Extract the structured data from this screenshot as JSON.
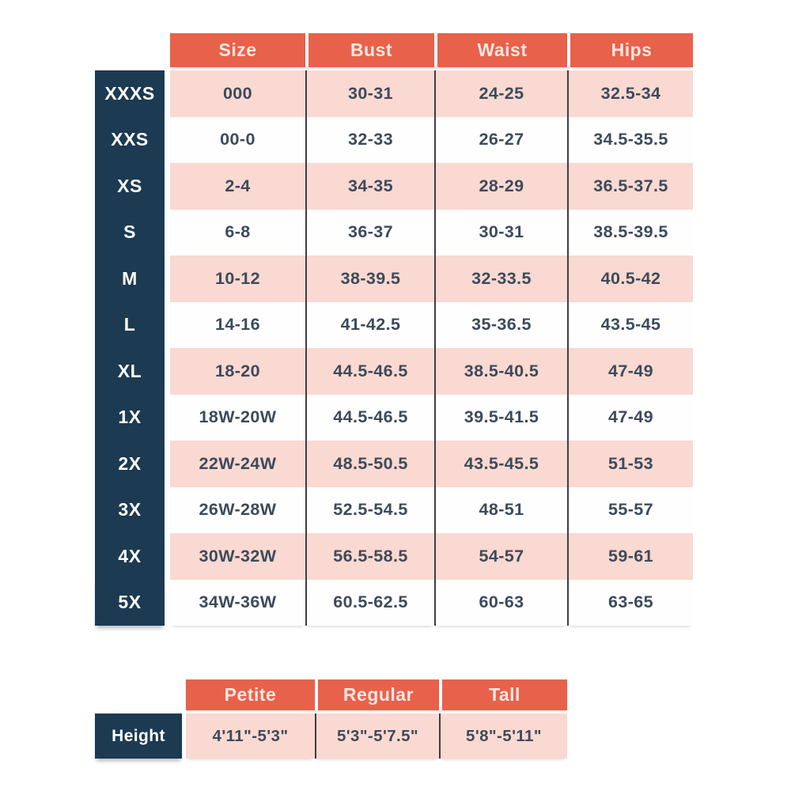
{
  "colors": {
    "coral_header": "#E8614B",
    "navy_label": "#1C3A52",
    "pink_row": "#F9D9D1",
    "divider": "#3D3D45",
    "data_text": "#3D4A5B"
  },
  "size_table": {
    "columns": [
      "Size",
      "Bust",
      "Waist",
      "Hips"
    ],
    "rows": [
      {
        "label": "XXXS",
        "cells": [
          "000",
          "30-31",
          "24-25",
          "32.5-34"
        ]
      },
      {
        "label": "XXS",
        "cells": [
          "00-0",
          "32-33",
          "26-27",
          "34.5-35.5"
        ]
      },
      {
        "label": "XS",
        "cells": [
          "2-4",
          "34-35",
          "28-29",
          "36.5-37.5"
        ]
      },
      {
        "label": "S",
        "cells": [
          "6-8",
          "36-37",
          "30-31",
          "38.5-39.5"
        ]
      },
      {
        "label": "M",
        "cells": [
          "10-12",
          "38-39.5",
          "32-33.5",
          "40.5-42"
        ]
      },
      {
        "label": "L",
        "cells": [
          "14-16",
          "41-42.5",
          "35-36.5",
          "43.5-45"
        ]
      },
      {
        "label": "XL",
        "cells": [
          "18-20",
          "44.5-46.5",
          "38.5-40.5",
          "47-49"
        ]
      },
      {
        "label": "1X",
        "cells": [
          "18W-20W",
          "44.5-46.5",
          "39.5-41.5",
          "47-49"
        ]
      },
      {
        "label": "2X",
        "cells": [
          "22W-24W",
          "48.5-50.5",
          "43.5-45.5",
          "51-53"
        ]
      },
      {
        "label": "3X",
        "cells": [
          "26W-28W",
          "52.5-54.5",
          "48-51",
          "55-57"
        ]
      },
      {
        "label": "4X",
        "cells": [
          "30W-32W",
          "56.5-58.5",
          "54-57",
          "59-61"
        ]
      },
      {
        "label": "5X",
        "cells": [
          "34W-36W",
          "60.5-62.5",
          "60-63",
          "63-65"
        ]
      }
    ]
  },
  "height_table": {
    "columns": [
      "Petite",
      "Regular",
      "Tall"
    ],
    "row_label": "Height",
    "values": [
      "4'11\"-5'3\"",
      "5'3\"-5'7.5\"",
      "5'8\"-5'11\""
    ]
  }
}
